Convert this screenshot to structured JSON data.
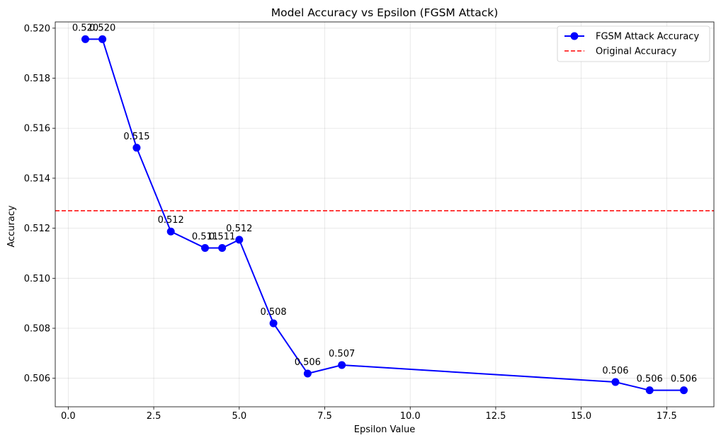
{
  "chart_data": {
    "type": "line",
    "title": "Model Accuracy vs Epsilon (FGSM Attack)",
    "xlabel": "Epsilon Value",
    "ylabel": "Accuracy",
    "xlim": [
      -0.38,
      18.88
    ],
    "ylim": [
      0.50486,
      0.52025
    ],
    "xticks": [
      0.0,
      2.5,
      5.0,
      7.5,
      10.0,
      12.5,
      15.0,
      17.5
    ],
    "xtick_labels": [
      "0.0",
      "2.5",
      "5.0",
      "7.5",
      "10.0",
      "12.5",
      "15.0",
      "17.5"
    ],
    "yticks": [
      0.506,
      0.508,
      0.51,
      0.512,
      0.514,
      0.516,
      0.518,
      0.52
    ],
    "ytick_labels": [
      "0.506",
      "0.508",
      "0.510",
      "0.512",
      "0.514",
      "0.516",
      "0.518",
      "0.520"
    ],
    "grid": true,
    "legend_position": "top-right",
    "series": [
      {
        "name": "FGSM Attack Accuracy",
        "color": "#0000ff",
        "marker": "circle",
        "line_style": "solid",
        "x": [
          0.5,
          1,
          2,
          3,
          4,
          4.5,
          5,
          6,
          7,
          8,
          16,
          17,
          18
        ],
        "y": [
          0.51956,
          0.51956,
          0.51522,
          0.51187,
          0.51121,
          0.51121,
          0.51154,
          0.5082,
          0.50619,
          0.50653,
          0.50585,
          0.50552,
          0.50552
        ],
        "labels": [
          "0.520",
          "0.520",
          "0.515",
          "0.512",
          "0.511",
          "0.511",
          "0.512",
          "0.508",
          "0.506",
          "0.507",
          "0.506",
          "0.506",
          "0.506"
        ]
      },
      {
        "name": "Original Accuracy",
        "color": "#ff0000",
        "line_style": "dashed",
        "y_constant": 0.5127
      }
    ]
  }
}
